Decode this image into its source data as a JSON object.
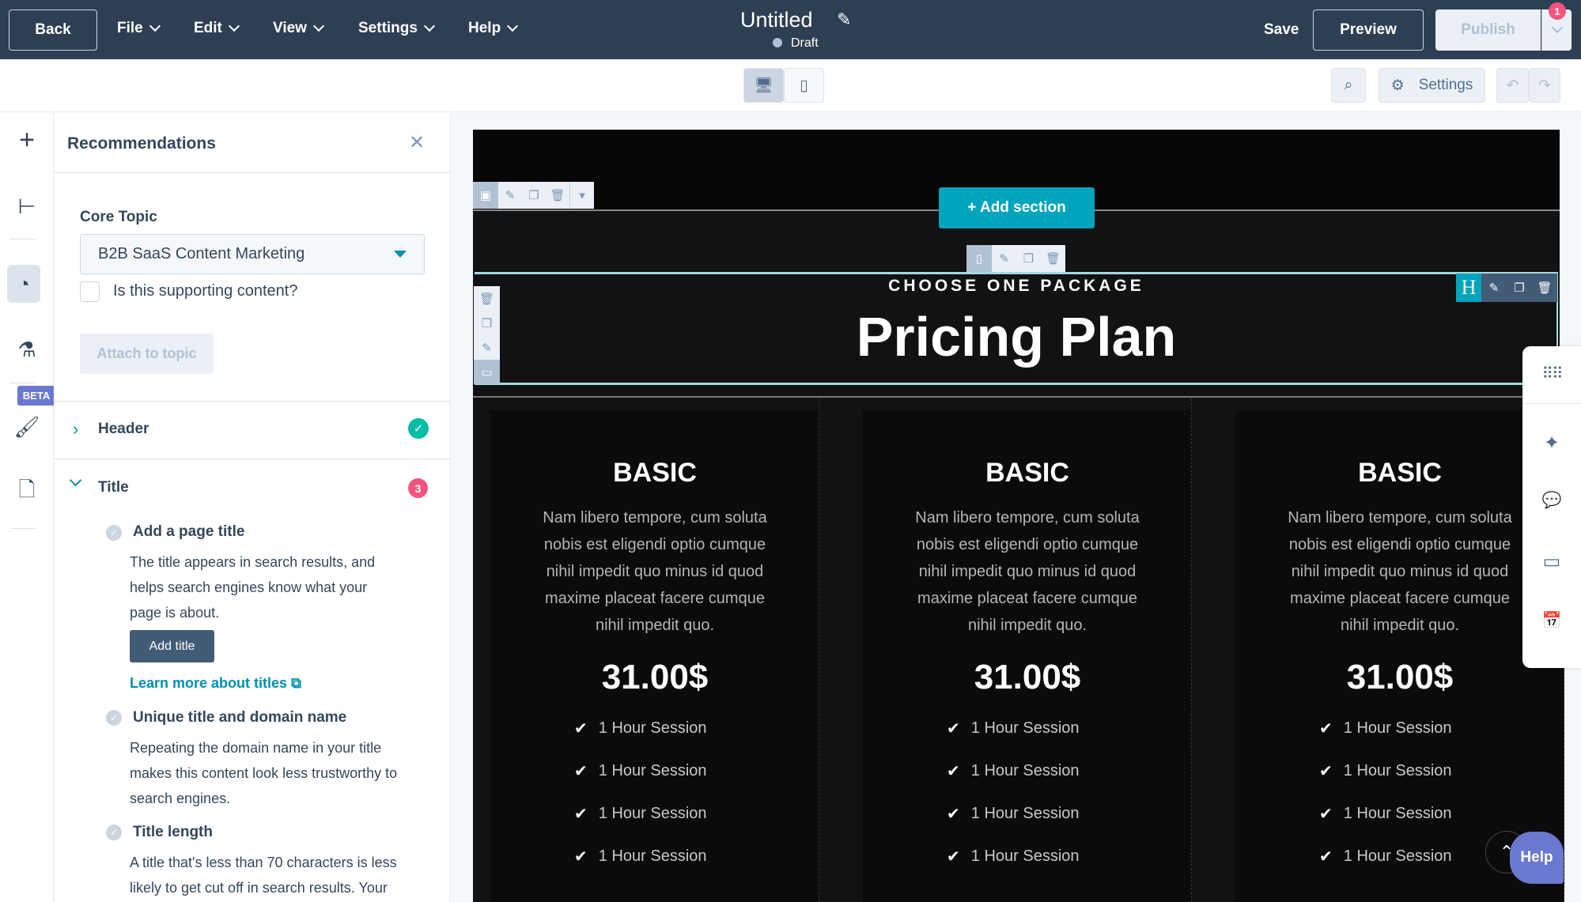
{
  "topbar": {
    "back": "Back",
    "menus": [
      "File",
      "Edit",
      "View",
      "Settings",
      "Help"
    ],
    "title": "Untitled",
    "status": "Draft",
    "save": "Save",
    "preview": "Preview",
    "publish": "Publish",
    "publish_badge": "1"
  },
  "toolbar": {
    "settings": "Settings"
  },
  "rail": {
    "beta": "BETA"
  },
  "panel": {
    "title": "Recommendations",
    "core_topic_label": "Core Topic",
    "core_topic_value": "B2B SaaS Content Marketing",
    "supporting_label": "Is this supporting content?",
    "attach": "Attach to topic",
    "sections": [
      {
        "label": "Header",
        "status": "complete"
      },
      {
        "label": "Title",
        "badge": "3"
      }
    ],
    "items": [
      {
        "title": "Add a page title",
        "lines": [
          "The title appears in search results, and",
          "helps search engines know what your",
          "page is about."
        ],
        "button": "Add title",
        "link": "Learn more about titles"
      },
      {
        "title": "Unique title and domain name",
        "lines": [
          "Repeating the domain name in your title",
          "makes this content look less trustworthy to",
          "search engines."
        ]
      },
      {
        "title": "Title length",
        "lines": [
          "A title that's less than 70 characters is less",
          "likely to get cut off in search results. Your"
        ]
      }
    ]
  },
  "canvas": {
    "add_section": "+ Add section",
    "eyebrow": "CHOOSE ONE PACKAGE",
    "heading": "Pricing Plan",
    "heading_tool": "H",
    "cards": [
      {
        "name": "BASIC",
        "desc": [
          "Nam libero tempore, cum soluta",
          "nobis est eligendi optio cumque",
          "nihil impedit quo minus id quod",
          "maxime placeat facere cumque",
          "nihil impedit quo."
        ],
        "price": "31.00$",
        "features": [
          "1 Hour Session",
          "1 Hour Session",
          "1 Hour Session",
          "1 Hour Session"
        ]
      },
      {
        "name": "BASIC",
        "desc": [
          "Nam libero tempore, cum soluta",
          "nobis est eligendi optio cumque",
          "nihil impedit quo minus id quod",
          "maxime placeat facere cumque",
          "nihil impedit quo."
        ],
        "price": "31.00$",
        "features": [
          "1 Hour Session",
          "1 Hour Session",
          "1 Hour Session",
          "1 Hour Session"
        ]
      },
      {
        "name": "BASIC",
        "desc": [
          "Nam libero tempore, cum soluta",
          "nobis est eligendi optio cumque",
          "nihil impedit quo minus id quod",
          "maxime placeat facere cumque",
          "nihil impedit quo."
        ],
        "price": "31.00$",
        "features": [
          "1 Hour Session",
          "1 Hour Session",
          "1 Hour Session",
          "1 Hour Session"
        ]
      }
    ]
  },
  "help": "Help",
  "colors": {
    "topbar": "#2e3f54",
    "accent": "#00a4bd",
    "help": "#6a78d1",
    "badge": "#f2547d",
    "success": "#00bda5"
  }
}
